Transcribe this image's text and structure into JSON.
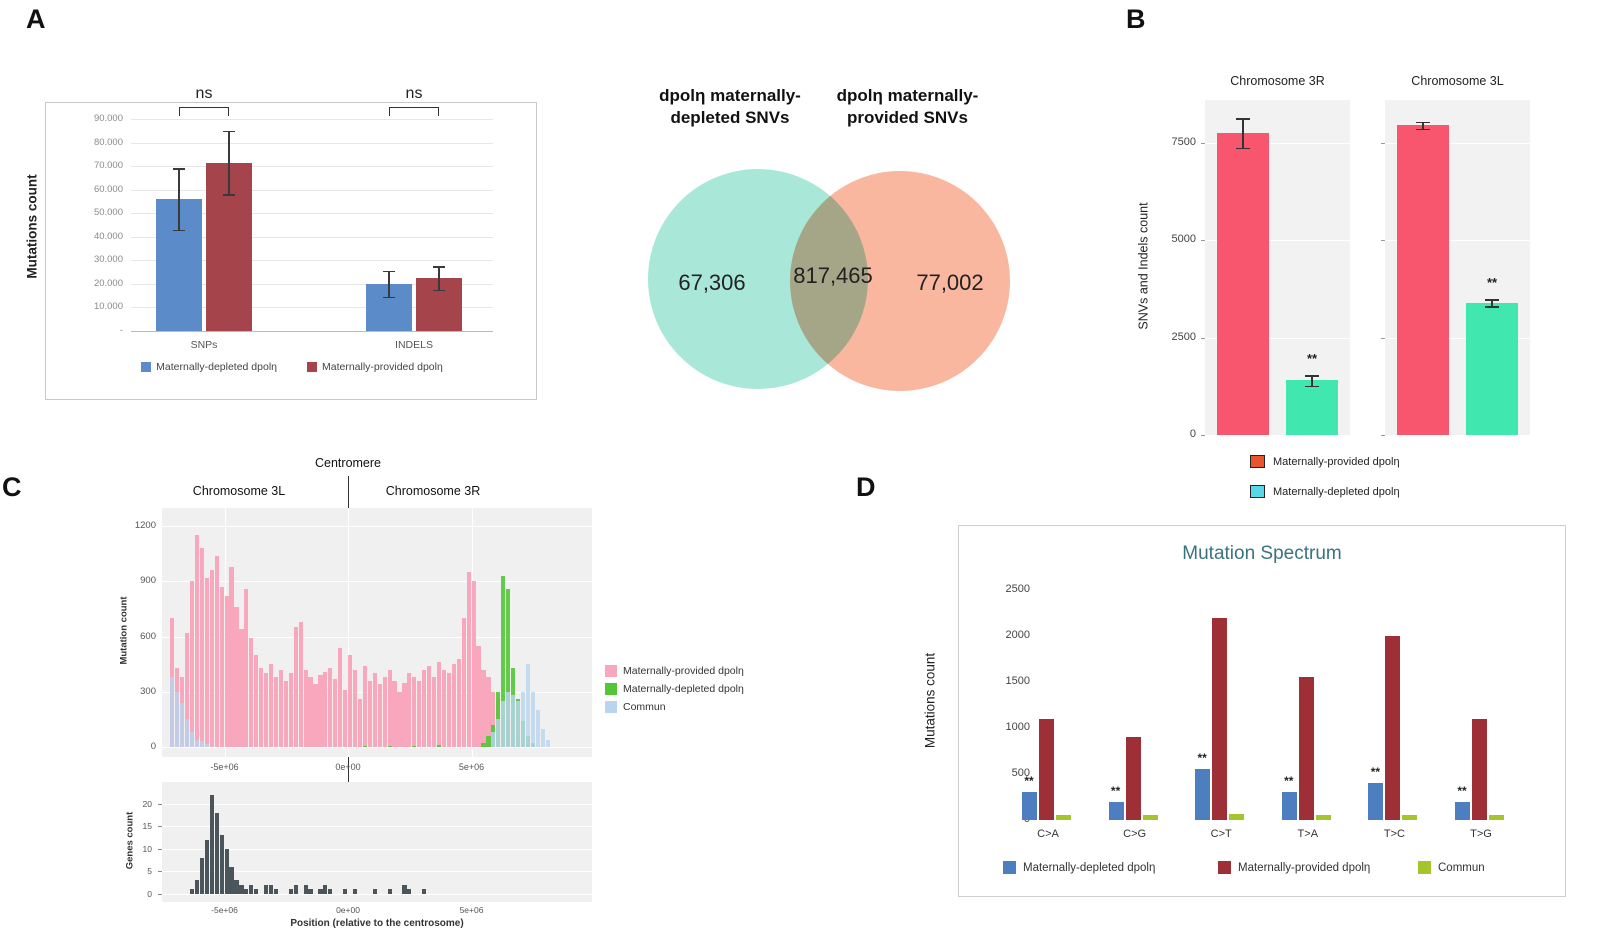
{
  "panels": {
    "a": "A",
    "b": "B",
    "c": "C",
    "d": "D"
  },
  "chart_data": [
    {
      "panel": "A",
      "id": "mutation-counts",
      "type": "bar",
      "ylabel": "Mutations count",
      "categories": [
        "SNPs",
        "INDELS"
      ],
      "ytick_labels": [
        "-",
        "10.000",
        "20.000",
        "30.000",
        "40.000",
        "50.000",
        "60.000",
        "70.000",
        "80.000",
        "90.000"
      ],
      "ymax": 90000,
      "group_annotation": "ns",
      "series": [
        {
          "name": "Maternally-depleted dpolη",
          "color": "#5b8bc9",
          "values": [
            56000,
            20000
          ],
          "errors": [
            13000,
            5500
          ]
        },
        {
          "name": "Maternally-provided dpolη",
          "color": "#a6444c",
          "values": [
            71500,
            22500
          ],
          "errors": [
            13500,
            5000
          ]
        }
      ]
    },
    {
      "panel": "A",
      "id": "snv-venn",
      "type": "venn",
      "left_title": "dpolη maternally-depleted SNVs",
      "right_title": "dpolη maternally-provided SNVs",
      "left_value": "67,306",
      "overlap_value": "817,465",
      "right_value": "77,002",
      "left_color": "#a9e8d8",
      "right_color": "#f9b79f"
    },
    {
      "panel": "B",
      "id": "chromosome-counts",
      "type": "bar",
      "ylabel": "SNVs and Indels count",
      "yticks": [
        0,
        2500,
        5000,
        7500
      ],
      "ymax": 8600,
      "subplots": [
        {
          "title": "Chromosome 3R",
          "bars": [
            {
              "series": "Maternally-provided dpolη",
              "color": "#f8566e",
              "value": 7750,
              "err": 380
            },
            {
              "series": "Maternally-depleted dpolη",
              "color": "#40e8b0",
              "value": 1400,
              "err": 140,
              "annotation": "**"
            }
          ]
        },
        {
          "title": "Chromosome 3L",
          "bars": [
            {
              "series": "Maternally-provided dpolη",
              "color": "#f8566e",
              "value": 7950,
              "err": 90
            },
            {
              "series": "Maternally-depleted dpolη",
              "color": "#40e8b0",
              "value": 3400,
              "err": 90,
              "annotation": "**"
            }
          ]
        }
      ],
      "legend": [
        {
          "label": "Maternally-provided dpolη",
          "swatch": "#e8542c"
        },
        {
          "label": "Maternally-depleted dpolη",
          "swatch": "#57d7e8"
        }
      ]
    },
    {
      "panel": "C",
      "id": "position-distribution",
      "type": "bar",
      "centromere_label": "Centromere",
      "left_chromosome": "Chromosome 3L",
      "right_chromosome": "Chromosome 3R",
      "top": {
        "ylabel": "Mutation count",
        "yticks": [
          0,
          300,
          600,
          900,
          1200
        ],
        "ymax": 1250,
        "bin_start": -7400000,
        "bin_width": 200000,
        "xticks": [
          {
            "v": -5000000,
            "label": "-5e+06"
          },
          {
            "v": 0,
            "label": "0e+00"
          },
          {
            "v": 5000000,
            "label": "5e+06"
          }
        ],
        "series": [
          {
            "name": "Maternally-provided dpolη",
            "color": "#f9a7bc",
            "opacity": 1,
            "values": [
              0,
              700,
              430,
              380,
              620,
              900,
              1150,
              1080,
              920,
              960,
              1040,
              870,
              820,
              980,
              760,
              640,
              860,
              590,
              500,
              430,
              400,
              450,
              380,
              420,
              360,
              400,
              650,
              680,
              420,
              380,
              340,
              390,
              410,
              430,
              370,
              540,
              310,
              500,
              420,
              260,
              440,
              360,
              400,
              340,
              380,
              420,
              360,
              300,
              350,
              400,
              380,
              360,
              420,
              440,
              380,
              460,
              420,
              400,
              450,
              480,
              700,
              950,
              900,
              550,
              420,
              380,
              300,
              260,
              200,
              150,
              100,
              60,
              30,
              15,
              8,
              0,
              0,
              0
            ]
          },
          {
            "name": "Maternally-depleted dpolη",
            "color": "#52c636",
            "opacity": 0.9,
            "values": [
              0,
              0,
              0,
              0,
              0,
              0,
              0,
              0,
              0,
              0,
              0,
              0,
              0,
              0,
              0,
              0,
              0,
              0,
              0,
              0,
              0,
              0,
              0,
              0,
              0,
              0,
              0,
              0,
              0,
              0,
              0,
              0,
              0,
              0,
              0,
              0,
              0,
              0,
              0,
              0,
              8,
              0,
              0,
              0,
              0,
              8,
              0,
              0,
              0,
              0,
              8,
              0,
              0,
              0,
              0,
              10,
              0,
              0,
              0,
              0,
              0,
              0,
              0,
              0,
              20,
              60,
              120,
              300,
              930,
              860,
              430,
              260,
              140,
              60,
              20,
              0,
              0,
              0
            ]
          },
          {
            "name": "Commun",
            "color": "#b8d4ee",
            "opacity": 0.82,
            "values": [
              0,
              380,
              300,
              240,
              150,
              80,
              40,
              30,
              15,
              0,
              0,
              0,
              0,
              0,
              0,
              0,
              0,
              0,
              0,
              0,
              0,
              0,
              0,
              0,
              0,
              0,
              0,
              0,
              0,
              0,
              0,
              0,
              0,
              0,
              0,
              0,
              0,
              0,
              0,
              0,
              0,
              0,
              0,
              0,
              0,
              0,
              0,
              0,
              0,
              0,
              0,
              0,
              0,
              0,
              0,
              0,
              0,
              0,
              0,
              0,
              0,
              0,
              0,
              0,
              0,
              0,
              80,
              150,
              250,
              300,
              280,
              250,
              300,
              450,
              300,
              200,
              100,
              40
            ]
          }
        ]
      },
      "bottom": {
        "ylabel": "Genes count",
        "xlabel": "Position (relative to the centrosome)",
        "yticks": [
          0,
          5,
          10,
          15,
          20
        ],
        "ymax": 23,
        "color": "#4a565c",
        "values": [
          0,
          0,
          0,
          0,
          0,
          1,
          3,
          8,
          12,
          22,
          18,
          13,
          10,
          6,
          3,
          2,
          1,
          2,
          1,
          0,
          2,
          2,
          1,
          0,
          0,
          1,
          2,
          0,
          2,
          1,
          0,
          1,
          2,
          1,
          0,
          0,
          1,
          0,
          1,
          0,
          0,
          0,
          1,
          0,
          0,
          1,
          0,
          0,
          2,
          1,
          0,
          0,
          1,
          0,
          0,
          0,
          0,
          0,
          0,
          0,
          0,
          0,
          0,
          0,
          0,
          0,
          0,
          0,
          0,
          0,
          0,
          0,
          0,
          0,
          0,
          0,
          0,
          0
        ]
      },
      "legend": [
        {
          "label": "Maternally-provided dpolη",
          "swatch": "#f9a7bc"
        },
        {
          "label": "Maternally-depleted dpolη",
          "swatch": "#52c636"
        },
        {
          "label": "Commun",
          "swatch": "#b8d4ee"
        }
      ]
    },
    {
      "panel": "D",
      "id": "mutation-spectrum",
      "type": "bar",
      "title": "Mutation Spectrum",
      "title_color": "#3a7380",
      "ylabel": "Mutations count",
      "categories": [
        "C>A",
        "C>G",
        "C>T",
        "T>A",
        "T>C",
        "T>G"
      ],
      "yticks": [
        0,
        500,
        1000,
        1500,
        2000,
        2500
      ],
      "ymax": 2600,
      "series": [
        {
          "name": "Maternally-depleted dpolη",
          "color": "#4d7ebf",
          "values": [
            300,
            200,
            550,
            300,
            400,
            200
          ],
          "annotation": "**"
        },
        {
          "name": "Maternally-provided dpolη",
          "color": "#9e2f36",
          "values": [
            1100,
            900,
            2200,
            1550,
            2000,
            1100
          ]
        },
        {
          "name": "Commun",
          "color": "#a4c62c",
          "values": [
            50,
            50,
            70,
            50,
            50,
            50
          ]
        }
      ]
    }
  ]
}
